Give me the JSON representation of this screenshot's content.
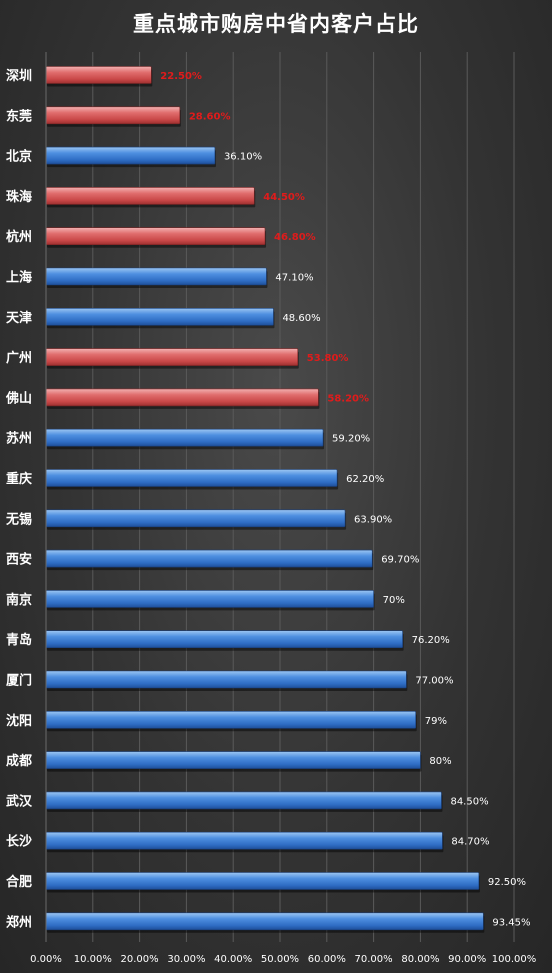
{
  "chart_data": {
    "type": "bar",
    "orientation": "horizontal",
    "title": "重点城市购房中省内客户占比",
    "xlim": [
      0,
      100
    ],
    "x_ticks": [
      "0.00%",
      "10.00%",
      "20.00%",
      "30.00%",
      "40.00%",
      "50.00%",
      "60.00%",
      "70.00%",
      "80.00%",
      "90.00%",
      "100.00%"
    ],
    "grid": true,
    "colors": {
      "blue": "#3f82d8",
      "red": "#d85a5a",
      "label_white": "#ffffff",
      "label_red": "#e01b1b"
    },
    "categories": [
      "深圳",
      "东莞",
      "北京",
      "珠海",
      "杭州",
      "上海",
      "天津",
      "广州",
      "佛山",
      "苏州",
      "重庆",
      "无锡",
      "西安",
      "南京",
      "青岛",
      "厦门",
      "沈阳",
      "成都",
      "武汉",
      "长沙",
      "合肥",
      "郑州"
    ],
    "values": [
      22.5,
      28.6,
      36.1,
      44.5,
      46.8,
      47.1,
      48.6,
      53.8,
      58.2,
      59.2,
      62.2,
      63.9,
      69.7,
      70,
      76.2,
      77.0,
      79,
      80,
      84.5,
      84.7,
      92.5,
      93.45
    ],
    "data_labels": [
      "22.50%",
      "28.60%",
      "36.10%",
      "44.50%",
      "46.80%",
      "47.10%",
      "48.60%",
      "53.80%",
      "58.20%",
      "59.20%",
      "62.20%",
      "63.90%",
      "69.70%",
      "70%",
      "76.20%",
      "77.00%",
      "79%",
      "80%",
      "84.50%",
      "84.70%",
      "92.50%",
      "93.45%"
    ],
    "highlight": [
      true,
      true,
      false,
      true,
      true,
      false,
      false,
      true,
      true,
      false,
      false,
      false,
      false,
      false,
      false,
      false,
      false,
      false,
      false,
      false,
      false,
      false
    ]
  }
}
